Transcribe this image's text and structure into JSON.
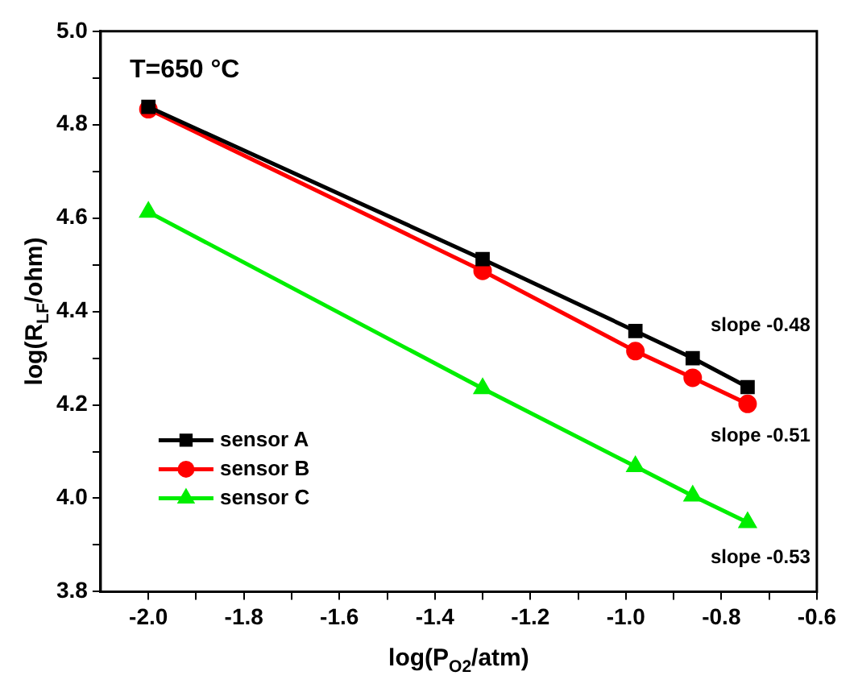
{
  "chart_data": {
    "type": "line",
    "xlabel": "log(P$_{O2}$/atm)",
    "ylabel": "log(R$_{LF}$/ohm)",
    "x": [
      -2.0,
      -1.3,
      -0.98,
      -0.86,
      -0.745
    ],
    "series": [
      {
        "name": "sensor A",
        "color": "#000000",
        "marker": "square",
        "values": [
          4.838,
          4.512,
          4.358,
          4.3,
          4.238
        ]
      },
      {
        "name": "sensor B",
        "color": "#ff0000",
        "marker": "circle",
        "values": [
          4.833,
          4.487,
          4.315,
          4.258,
          4.202
        ]
      },
      {
        "name": "sensor C",
        "color": "#00ee00",
        "marker": "triangle",
        "values": [
          4.613,
          4.235,
          4.068,
          4.005,
          3.948
        ]
      }
    ],
    "xlim": [
      -2.1,
      -0.6
    ],
    "xticks": [
      {
        "value": -2.0,
        "label": "-2.0"
      },
      {
        "value": -1.9,
        "label": null
      },
      {
        "value": -1.8,
        "label": "-1.8"
      },
      {
        "value": -1.7,
        "label": null
      },
      {
        "value": -1.6,
        "label": "-1.6"
      },
      {
        "value": -1.5,
        "label": null
      },
      {
        "value": -1.4,
        "label": "-1.4"
      },
      {
        "value": -1.3,
        "label": null
      },
      {
        "value": -1.2,
        "label": "-1.2"
      },
      {
        "value": -1.1,
        "label": null
      },
      {
        "value": -1.0,
        "label": "-1.0"
      },
      {
        "value": -0.9,
        "label": null
      },
      {
        "value": -0.8,
        "label": "-0.8"
      },
      {
        "value": -0.7,
        "label": null
      },
      {
        "value": -0.6,
        "label": "-0.6"
      }
    ],
    "ylim": [
      3.8,
      5.0
    ],
    "yticks": [
      {
        "value": 3.8,
        "label": "3.8"
      },
      {
        "value": 3.9,
        "label": null
      },
      {
        "value": 4.0,
        "label": "4.0"
      },
      {
        "value": 4.1,
        "label": null
      },
      {
        "value": 4.2,
        "label": "4.2"
      },
      {
        "value": 4.3,
        "label": null
      },
      {
        "value": 4.4,
        "label": "4.4"
      },
      {
        "value": 4.5,
        "label": null
      },
      {
        "value": 4.6,
        "label": "4.6"
      },
      {
        "value": 4.7,
        "label": null
      },
      {
        "value": 4.8,
        "label": "4.8"
      },
      {
        "value": 4.9,
        "label": null
      },
      {
        "value": 5.0,
        "label": "5.0"
      }
    ],
    "grid": false,
    "legend": "bottom left",
    "line_style": "solid",
    "annotations": [
      "T=650 °C",
      "slope -0.48",
      "slope -0.51",
      "slope -0.53"
    ]
  }
}
